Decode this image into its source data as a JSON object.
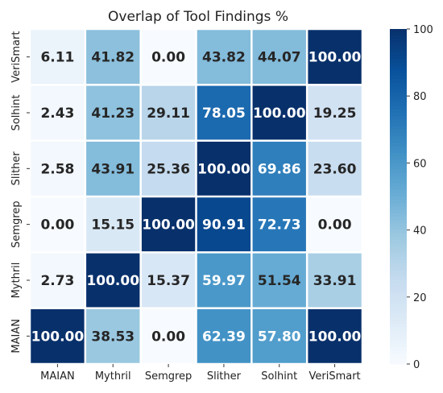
{
  "chart_data": {
    "type": "heatmap",
    "title": "Overlap of Tool Findings %",
    "x_labels": [
      "MAIAN",
      "Mythril",
      "Semgrep",
      "Slither",
      "Solhint",
      "VeriSmart"
    ],
    "y_labels": [
      "VeriSmart",
      "Solhint",
      "Slither",
      "Semgrep",
      "Mythril",
      "MAIAN"
    ],
    "values": [
      [
        6.11,
        41.82,
        0.0,
        43.82,
        44.07,
        100.0
      ],
      [
        2.43,
        41.23,
        29.11,
        78.05,
        100.0,
        19.25
      ],
      [
        2.58,
        43.91,
        25.36,
        100.0,
        69.86,
        23.6
      ],
      [
        0.0,
        15.15,
        100.0,
        90.91,
        72.73,
        0.0
      ],
      [
        2.73,
        100.0,
        15.37,
        59.97,
        51.54,
        33.91
      ],
      [
        100.0,
        38.53,
        0.0,
        62.39,
        57.8,
        100.0
      ]
    ],
    "value_range": [
      0,
      100
    ],
    "colorbar_ticks": [
      0,
      20,
      40,
      60,
      80,
      100
    ],
    "colormap": "Blues",
    "colors": {
      "low": "#f7fbff",
      "high": "#08306b",
      "cell_border": "#ffffff"
    }
  }
}
